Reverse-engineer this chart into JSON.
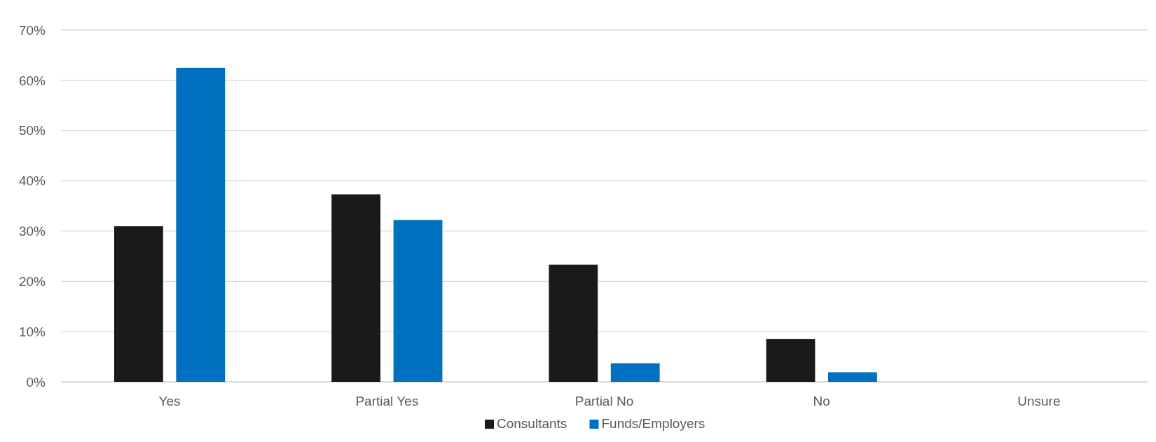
{
  "chart_data": {
    "type": "bar",
    "categories": [
      "Yes",
      "Partial Yes",
      "Partial No",
      "No",
      "Unsure"
    ],
    "series": [
      {
        "name": "Consultants",
        "color": "#1a1a1a",
        "values": [
          31.0,
          37.3,
          23.3,
          8.5,
          0
        ]
      },
      {
        "name": "Funds/Employers",
        "color": "#0070c0",
        "values": [
          62.5,
          32.2,
          3.7,
          1.9,
          0
        ]
      }
    ],
    "ylim": [
      0,
      70
    ],
    "yticks": [
      {
        "value": 0,
        "label": "0%"
      },
      {
        "value": 10,
        "label": "10%"
      },
      {
        "value": 20,
        "label": "20%"
      },
      {
        "value": 30,
        "label": "30%"
      },
      {
        "value": 40,
        "label": "40%"
      },
      {
        "value": 50,
        "label": "50%"
      },
      {
        "value": 60,
        "label": "60%"
      },
      {
        "value": 70,
        "label": "70%"
      }
    ],
    "grid": "y",
    "legend": "bottom"
  }
}
